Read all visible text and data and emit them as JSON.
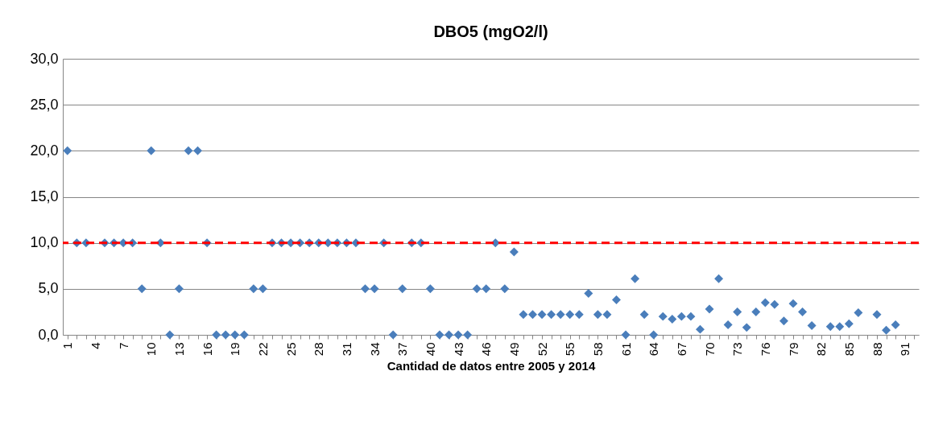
{
  "chart_data": {
    "type": "scatter",
    "title": "DBO5 (mgO2/l)",
    "xlabel": "Cantidad de datos entre 2005 y 2014",
    "categories": [
      "1",
      null,
      null,
      "4",
      null,
      null,
      "7",
      null,
      null,
      "10",
      null,
      null,
      "13",
      null,
      null,
      "16",
      null,
      null,
      "19",
      null,
      null,
      "22",
      null,
      null,
      "25",
      null,
      null,
      "28",
      null,
      null,
      "31",
      null,
      null,
      "34",
      null,
      null,
      "37",
      null,
      null,
      "40",
      null,
      null,
      "43",
      null,
      null,
      "46",
      null,
      null,
      "49",
      null,
      null,
      "52",
      null,
      null,
      "55",
      null,
      null,
      "58",
      null,
      null,
      "61",
      null,
      null,
      "64",
      null,
      null,
      "67",
      null,
      null,
      "70",
      null,
      null,
      "73",
      null,
      null,
      "76",
      null,
      null,
      "79",
      null,
      null,
      "82",
      null,
      null,
      "85",
      null,
      null,
      "88",
      null,
      null,
      "91",
      null
    ],
    "series": [
      {
        "color": "#4a7ebb",
        "values": [
          20,
          10,
          10,
          null,
          10,
          10,
          10,
          10,
          5,
          20,
          10,
          0,
          5,
          20,
          20,
          10,
          0,
          0,
          0,
          0,
          5,
          5,
          10,
          10,
          10,
          10,
          10,
          10,
          10,
          10,
          10,
          10,
          5,
          5,
          10,
          0,
          5,
          10,
          10,
          5,
          0,
          0,
          0,
          0,
          5,
          5,
          10,
          5,
          9.0,
          2.2,
          2.2,
          2.2,
          2.2,
          2.2,
          2.2,
          2.2,
          4.5,
          2.2,
          2.2,
          3.8,
          0,
          6.1,
          2.2,
          0,
          2.0,
          1.7,
          2.0,
          2.0,
          0.6,
          2.8,
          6.1,
          1.1,
          2.5,
          0.8,
          2.5,
          3.5,
          3.3,
          1.5,
          3.4,
          2.5,
          1.0,
          null,
          0.9,
          0.9,
          1.2,
          2.4,
          null,
          2.2,
          0.5,
          1.1,
          null,
          null
        ]
      }
    ],
    "ylim": [
      0,
      30
    ],
    "yticks": [
      {
        "value": 0,
        "label": "0,0"
      },
      {
        "value": 5,
        "label": "5,0"
      },
      {
        "value": 10,
        "label": "10,0"
      },
      {
        "value": 15,
        "label": "15,0"
      },
      {
        "value": 20,
        "label": "20,0"
      },
      {
        "value": 25,
        "label": "25,0"
      },
      {
        "value": 30,
        "label": "30,0"
      }
    ],
    "ref_lines": [
      {
        "axis": "y",
        "value": 10,
        "color": "#ff0000",
        "line_style": "dashed"
      }
    ],
    "grid": "y",
    "marker": "diamond"
  }
}
